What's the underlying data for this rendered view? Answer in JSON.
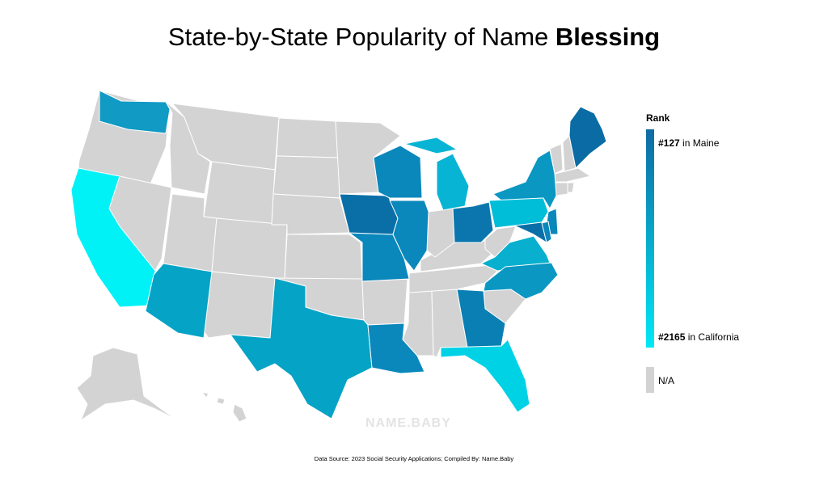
{
  "title": {
    "prefix": "State-by-State Popularity of Name ",
    "name": "Blessing"
  },
  "legend": {
    "title": "Rank",
    "top_rank": "#127",
    "top_state": " in Maine",
    "bottom_rank": "#2165",
    "bottom_state": " in California",
    "na_label": "N/A",
    "gradient_top": "#0f6aa3",
    "gradient_bottom": "#00e8f5",
    "na_color": "#d3d3d3"
  },
  "watermark": "NAME.BABY",
  "footer": "Data Source: 2023 Social Security Applications; Compiled By: Name.Baby",
  "colors": {
    "WA": "#109ac4",
    "CA": "#00f2f7",
    "AZ": "#05a3c6",
    "TX": "#05a3c6",
    "LA": "#0a87bb",
    "MO": "#0a87bb",
    "IA": "#0b6fa7",
    "WI": "#0a87bb",
    "MI": "#08b4d4",
    "IL": "#0a87bb",
    "OH": "#0b76ad",
    "GA": "#0a7fb4",
    "FL": "#00d2e6",
    "NY": "#0a97c2",
    "PA": "#00bdd8",
    "NJ": "#0a87bb",
    "MD": "#0b6fa7",
    "DE": "#0a87bb",
    "VA": "#08afce",
    "NC": "#0a97c2",
    "ME": "#0b6ca5",
    "MA": "#d3d3d3"
  }
}
